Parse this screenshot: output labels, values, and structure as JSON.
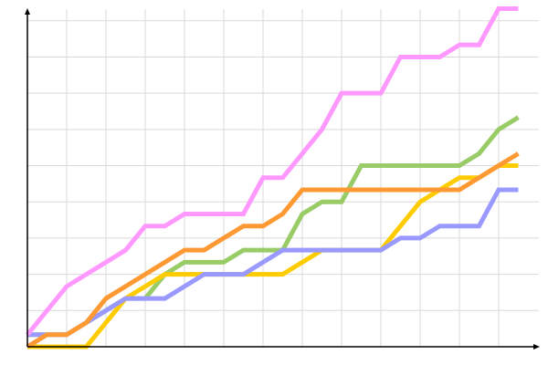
{
  "chart_data": {
    "type": "line",
    "title": "",
    "xlabel": "",
    "ylabel": "",
    "x": [
      0,
      1,
      2,
      3,
      4,
      5,
      6,
      7,
      8,
      9,
      10,
      11,
      12,
      13,
      14,
      15,
      16,
      17,
      18,
      19,
      20,
      21,
      22,
      23,
      24,
      25
    ],
    "xlim": [
      0,
      26
    ],
    "ylim": [
      0,
      28
    ],
    "x_grid_every": 2,
    "y_grid_every": 3,
    "grid": true,
    "tick_labels": false,
    "legend": "none",
    "series": [
      {
        "color": "#99cc66",
        "values": [
          1,
          1,
          1,
          2,
          3,
          4,
          4,
          6,
          7,
          7,
          7,
          8,
          8,
          8,
          11,
          12,
          12,
          15,
          15,
          15,
          15,
          15,
          15,
          16,
          18,
          19
        ]
      },
      {
        "color": "#ffcc00",
        "values": [
          0,
          0,
          0,
          0,
          2,
          4,
          5,
          6,
          6,
          6,
          6,
          6,
          6,
          6,
          7,
          8,
          8,
          8,
          8,
          10,
          12,
          13,
          14,
          14,
          15,
          15
        ]
      },
      {
        "color": "#9999ff",
        "values": [
          1,
          1,
          1,
          2,
          3,
          4,
          4,
          4,
          5,
          6,
          6,
          6,
          7,
          8,
          8,
          8,
          8,
          8,
          8,
          9,
          9,
          10,
          10,
          10,
          13,
          13
        ]
      },
      {
        "color": "#ff9933",
        "values": [
          0,
          1,
          1,
          2,
          4,
          5,
          6,
          7,
          8,
          8,
          9,
          10,
          10,
          11,
          13,
          13,
          13,
          13,
          13,
          13,
          13,
          13,
          13,
          14,
          15,
          16
        ]
      },
      {
        "color": "#ff99ff",
        "values": [
          1,
          3,
          5,
          6,
          7,
          8,
          10,
          10,
          11,
          11,
          11,
          11,
          14,
          14,
          16,
          18,
          21,
          21,
          21,
          24,
          24,
          24,
          25,
          25,
          28,
          28
        ]
      }
    ]
  }
}
